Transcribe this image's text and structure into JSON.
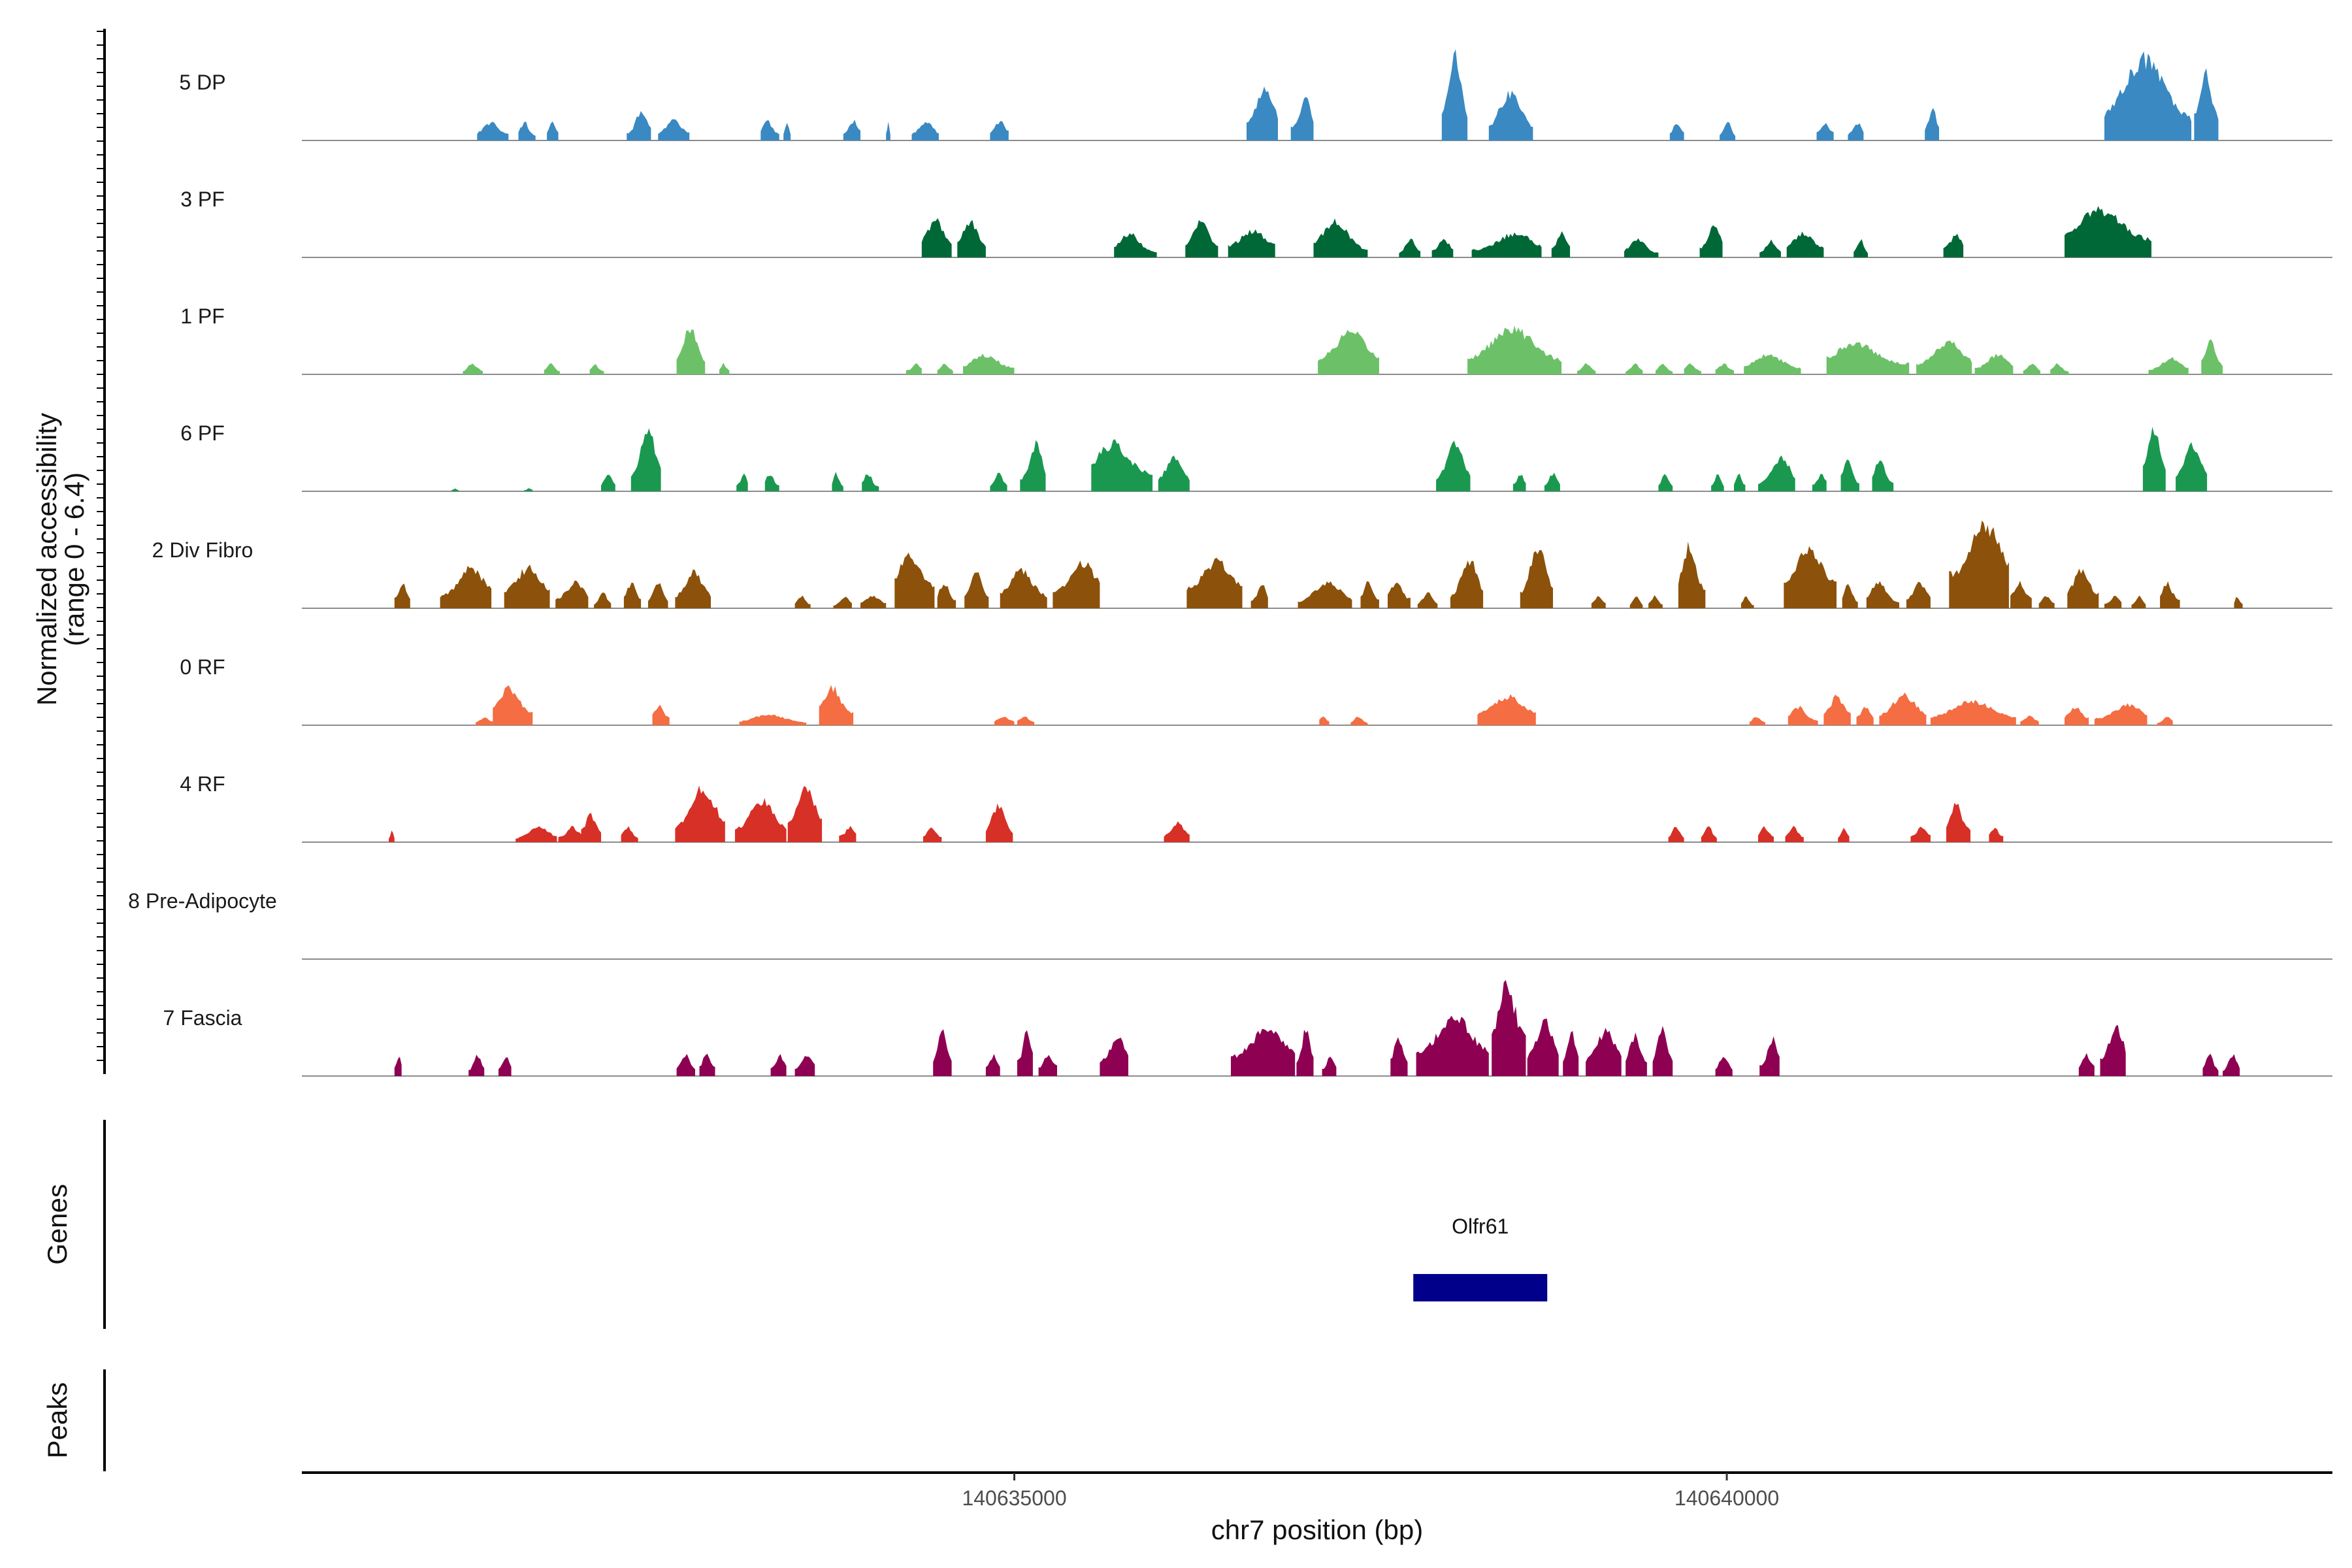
{
  "chart_data": {
    "type": "area",
    "subtype": "genome coverage tracks",
    "ylabel": "Normalized accessibility",
    "ylabel_range": "(range 0 - 6.4)",
    "ylim": [
      0,
      6.4
    ],
    "xlabel": "chr7 position (bp)",
    "xlim": [
      140630000,
      140644250
    ],
    "xticks": [
      140635000,
      140640000
    ],
    "xtick_labels": [
      "140635000",
      "140640000"
    ],
    "tracks": [
      {
        "name": "5 DP",
        "color": "#3A89C2",
        "peaks": [
          [
            140631230,
            140631450,
            1.2
          ],
          [
            140631520,
            140631640,
            1.2
          ],
          [
            140631720,
            140631800,
            1.2
          ],
          [
            140632280,
            140632450,
            2.0
          ],
          [
            140632500,
            140632720,
            1.3
          ],
          [
            140633220,
            140633350,
            1.3
          ],
          [
            140633380,
            140633430,
            1.3
          ],
          [
            140633800,
            140633920,
            1.3
          ],
          [
            140634100,
            140634130,
            1.3
          ],
          [
            140634280,
            140634470,
            1.3
          ],
          [
            140634830,
            140634960,
            1.3
          ],
          [
            140636630,
            140636850,
            3.5
          ],
          [
            140636940,
            140637100,
            2.8
          ],
          [
            140638000,
            140638180,
            5.6
          ],
          [
            140638330,
            140638640,
            3.2
          ],
          [
            140639600,
            140639700,
            1.2
          ],
          [
            140639950,
            140640060,
            1.2
          ],
          [
            140640630,
            140640750,
            1.2
          ],
          [
            140640850,
            140640960,
            1.2
          ],
          [
            140641390,
            140641490,
            2.2
          ],
          [
            140642650,
            140643260,
            5.4
          ],
          [
            140643280,
            140643450,
            4.4
          ]
        ]
      },
      {
        "name": "3 PF",
        "color": "#006837",
        "peaks": [
          [
            140634350,
            140634560,
            2.5
          ],
          [
            140634600,
            140634800,
            2.4
          ],
          [
            140635700,
            140636000,
            1.6
          ],
          [
            140636200,
            140636430,
            2.4
          ],
          [
            140636500,
            140636830,
            1.8
          ],
          [
            140637100,
            140637480,
            2.4
          ],
          [
            140637700,
            140637850,
            1.2
          ],
          [
            140637930,
            140638080,
            1.2
          ],
          [
            140638210,
            140638700,
            1.6
          ],
          [
            140638770,
            140638900,
            1.6
          ],
          [
            140639280,
            140639520,
            1.2
          ],
          [
            140639810,
            140639970,
            2.3
          ],
          [
            140640230,
            140640380,
            1.1
          ],
          [
            140640420,
            140640680,
            1.6
          ],
          [
            140640890,
            140640990,
            1.2
          ],
          [
            140641520,
            140641660,
            1.6
          ],
          [
            140642370,
            140642980,
            3.2
          ]
        ]
      },
      {
        "name": "1 PF",
        "color": "#6CC168",
        "peaks": [
          [
            140631130,
            140631270,
            0.7
          ],
          [
            140631700,
            140631810,
            0.7
          ],
          [
            140632020,
            140632120,
            0.7
          ],
          [
            140632630,
            140632830,
            3.0
          ],
          [
            140632930,
            140633000,
            0.7
          ],
          [
            140634240,
            140634350,
            0.7
          ],
          [
            140634460,
            140634570,
            0.7
          ],
          [
            140634640,
            140635000,
            1.3
          ],
          [
            140637130,
            140637560,
            2.8
          ],
          [
            140638180,
            140638840,
            3.0
          ],
          [
            140638950,
            140639080,
            0.7
          ],
          [
            140639290,
            140639410,
            0.7
          ],
          [
            140639500,
            140639620,
            0.7
          ],
          [
            140639700,
            140639820,
            0.7
          ],
          [
            140639920,
            140640050,
            0.7
          ],
          [
            140640120,
            140640520,
            1.3
          ],
          [
            140640700,
            140641280,
            2.1
          ],
          [
            140641330,
            140641720,
            2.2
          ],
          [
            140641740,
            140642010,
            1.3
          ],
          [
            140642080,
            140642200,
            0.7
          ],
          [
            140642270,
            140642400,
            0.7
          ],
          [
            140642960,
            140643240,
            1.1
          ],
          [
            140643330,
            140643480,
            2.4
          ]
        ]
      },
      {
        "name": "6 PF",
        "color": "#1A9850",
        "peaks": [
          [
            140631050,
            140631100,
            0.2
          ],
          [
            140631560,
            140631620,
            0.2
          ],
          [
            140632100,
            140632200,
            1.2
          ],
          [
            140632310,
            140632520,
            4.2
          ],
          [
            140633050,
            140633130,
            1.2
          ],
          [
            140633250,
            140633350,
            1.2
          ],
          [
            140633720,
            140633800,
            1.2
          ],
          [
            140633930,
            140634050,
            1.2
          ],
          [
            140634830,
            140634950,
            1.2
          ],
          [
            140635040,
            140635220,
            3.2
          ],
          [
            140635540,
            140635970,
            3.2
          ],
          [
            140636010,
            140636230,
            2.3
          ],
          [
            140637960,
            140638200,
            3.3
          ],
          [
            140638500,
            140638590,
            1.2
          ],
          [
            140638720,
            140638830,
            1.2
          ],
          [
            140639520,
            140639620,
            1.2
          ],
          [
            140639890,
            140639980,
            1.2
          ],
          [
            140640050,
            140640130,
            1.2
          ],
          [
            140640220,
            140640480,
            2.2
          ],
          [
            140640600,
            140640700,
            1.2
          ],
          [
            140640800,
            140640930,
            2.2
          ],
          [
            140641020,
            140641170,
            2.2
          ],
          [
            140642920,
            140643080,
            4.4
          ],
          [
            140643150,
            140643370,
            3.2
          ]
        ]
      },
      {
        "name": "2 Div Fibro",
        "color": "#8C510A",
        "peaks": [
          [
            140630650,
            140630760,
            1.7
          ],
          [
            140630970,
            140631330,
            2.7
          ],
          [
            140631420,
            140631740,
            2.7
          ],
          [
            140631780,
            140632010,
            1.7
          ],
          [
            140632050,
            140632170,
            1.0
          ],
          [
            140632260,
            140632380,
            1.7
          ],
          [
            140632430,
            140632570,
            1.7
          ],
          [
            140632620,
            140632870,
            2.4
          ],
          [
            140633460,
            140633570,
            0.8
          ],
          [
            140633730,
            140633860,
            0.8
          ],
          [
            140633920,
            140634100,
            0.8
          ],
          [
            140634160,
            140634440,
            3.6
          ],
          [
            140634460,
            140634590,
            1.7
          ],
          [
            140634650,
            140634820,
            2.5
          ],
          [
            140634900,
            140635230,
            2.5
          ],
          [
            140635270,
            140635600,
            3.1
          ],
          [
            140636210,
            140636600,
            3.2
          ],
          [
            140636660,
            140636780,
            1.6
          ],
          [
            140636990,
            140637370,
            1.7
          ],
          [
            140637430,
            140637560,
            1.8
          ],
          [
            140637620,
            140637780,
            1.7
          ],
          [
            140637830,
            140637970,
            1.0
          ],
          [
            140638060,
            140638290,
            3.3
          ],
          [
            140638550,
            140638780,
            4.1
          ],
          [
            140639050,
            140639150,
            0.8
          ],
          [
            140639320,
            140639410,
            0.8
          ],
          [
            140639450,
            140639550,
            0.8
          ],
          [
            140639660,
            140639850,
            4.1
          ],
          [
            140640100,
            140640190,
            0.8
          ],
          [
            140640400,
            140640770,
            3.8
          ],
          [
            140640810,
            140640920,
            1.7
          ],
          [
            140640980,
            140641210,
            1.7
          ],
          [
            140641260,
            140641430,
            1.7
          ],
          [
            140641560,
            140641980,
            5.6
          ],
          [
            140641990,
            140642140,
            1.7
          ],
          [
            140642190,
            140642300,
            0.8
          ],
          [
            140642390,
            140642610,
            2.5
          ],
          [
            140642650,
            140642770,
            0.8
          ],
          [
            140642840,
            140642940,
            0.8
          ],
          [
            140643040,
            140643180,
            1.7
          ],
          [
            140643560,
            140643620,
            0.8
          ]
        ]
      },
      {
        "name": "0 RF",
        "color": "#F46D43",
        "peaks": [
          [
            140631220,
            140631340,
            0.5
          ],
          [
            140631340,
            140631620,
            2.5
          ],
          [
            140632460,
            140632580,
            1.3
          ],
          [
            140633070,
            140633540,
            0.7
          ],
          [
            140633630,
            140633870,
            2.5
          ],
          [
            140634860,
            140635000,
            0.6
          ],
          [
            140635020,
            140635140,
            0.6
          ],
          [
            140637140,
            140637210,
            0.6
          ],
          [
            140637360,
            140637480,
            0.6
          ],
          [
            140638250,
            140638660,
            1.9
          ],
          [
            140640160,
            140640270,
            0.6
          ],
          [
            140640430,
            140640640,
            1.2
          ],
          [
            140640680,
            140640870,
            1.9
          ],
          [
            140640910,
            140641030,
            1.2
          ],
          [
            140641070,
            140641400,
            2.0
          ],
          [
            140641430,
            140642030,
            1.6
          ],
          [
            140642060,
            140642190,
            0.6
          ],
          [
            140642370,
            140642540,
            1.2
          ],
          [
            140642580,
            140642950,
            1.4
          ],
          [
            140643020,
            140643130,
            0.6
          ]
        ]
      },
      {
        "name": "4 RF",
        "color": "#D73027",
        "peaks": [
          [
            140630610,
            140630650,
            0.8
          ],
          [
            140631500,
            140631790,
            1.0
          ],
          [
            140631800,
            140631960,
            1.0
          ],
          [
            140631960,
            140632100,
            1.8
          ],
          [
            140632240,
            140632360,
            1.0
          ],
          [
            140632620,
            140632970,
            3.6
          ],
          [
            140633040,
            140633400,
            2.8
          ],
          [
            140633410,
            140633650,
            3.6
          ],
          [
            140633770,
            140633890,
            1.0
          ],
          [
            140634360,
            140634490,
            1.0
          ],
          [
            140634800,
            140634990,
            2.5
          ],
          [
            140636050,
            140636230,
            1.3
          ],
          [
            140639590,
            140639700,
            1.0
          ],
          [
            140639820,
            140639930,
            1.0
          ],
          [
            140640220,
            140640330,
            1.0
          ],
          [
            140640410,
            140640540,
            1.0
          ],
          [
            140640780,
            140640860,
            1.0
          ],
          [
            140641290,
            140641430,
            1.0
          ],
          [
            140641540,
            140641710,
            2.5
          ],
          [
            140641840,
            140641940,
            1.0
          ]
        ]
      },
      {
        "name": "8 Pre-Adipocyte",
        "color": "#8C6BB1",
        "peaks": []
      },
      {
        "name": "7 Fascia",
        "color": "#8E0152",
        "peaks": [
          [
            140630650,
            140630700,
            1.4
          ],
          [
            140631170,
            140631280,
            1.4
          ],
          [
            140631380,
            140631470,
            1.4
          ],
          [
            140632630,
            140632760,
            1.4
          ],
          [
            140632790,
            140632900,
            1.4
          ],
          [
            140633290,
            140633400,
            1.4
          ],
          [
            140633460,
            140633600,
            1.4
          ],
          [
            140634430,
            140634560,
            3.0
          ],
          [
            140634800,
            140634900,
            1.4
          ],
          [
            140635020,
            140635130,
            3.0
          ],
          [
            140635170,
            140635300,
            1.4
          ],
          [
            140635600,
            140635800,
            2.6
          ],
          [
            140636520,
            140636970,
            3.1
          ],
          [
            140636980,
            140637100,
            3.3
          ],
          [
            140637160,
            140637260,
            1.4
          ],
          [
            140637640,
            140637760,
            2.6
          ],
          [
            140637820,
            140638330,
            3.8
          ],
          [
            140638350,
            140638590,
            6.0
          ],
          [
            140638600,
            140638820,
            3.6
          ],
          [
            140638850,
            140638960,
            2.8
          ],
          [
            140639010,
            140639260,
            3.1
          ],
          [
            140639290,
            140639440,
            2.7
          ],
          [
            140639480,
            140639620,
            3.1
          ],
          [
            140639920,
            140640040,
            1.4
          ],
          [
            140640230,
            140640370,
            2.5
          ],
          [
            140642470,
            140642580,
            1.4
          ],
          [
            140642620,
            140642800,
            3.4
          ],
          [
            140643340,
            140643450,
            1.4
          ],
          [
            140643480,
            140643600,
            1.4
          ]
        ]
      }
    ],
    "genes": [
      {
        "name": "Olfr61",
        "start": 140637800,
        "end": 140638740,
        "color": "#00008B"
      }
    ],
    "gene_track_label": "Genes",
    "peaks_track_label": "Peaks"
  }
}
